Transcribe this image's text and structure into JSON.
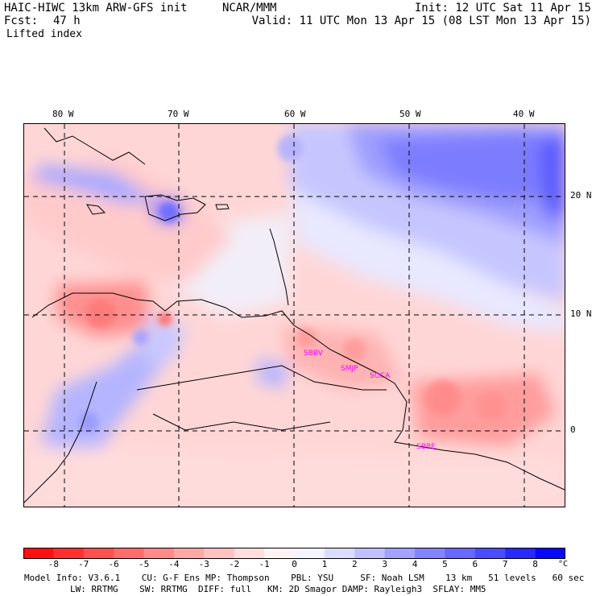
{
  "header": {
    "title": "HAIC-HIWC 13km ARW-GFS init",
    "org": "NCAR/MMM",
    "init": "Init: 12 UTC Sat 11 Apr 15",
    "fcst_label": "Fcst:",
    "fcst_value": "47 h",
    "valid": "Valid: 11 UTC Mon 13 Apr 15 (08 LST Mon 13 Apr 15)",
    "field": "Lifted index"
  },
  "map": {
    "lon_labels": [
      "80 W",
      "70 W",
      "60 W",
      "50 W",
      "40 W"
    ],
    "lat_labels": [
      "20 N",
      "10 N",
      "0"
    ],
    "stations": [
      "SBBV",
      "SMJP",
      "SOCA",
      "SBBE"
    ]
  },
  "legend": {
    "ticks": [
      "-8",
      "-7",
      "-6",
      "-5",
      "-4",
      "-3",
      "-2",
      "-1",
      "0",
      "1",
      "2",
      "3",
      "4",
      "5",
      "6",
      "7",
      "8"
    ],
    "unit": "°C",
    "colors": [
      "#ff1010",
      "#ff3030",
      "#ff5050",
      "#ff6c6c",
      "#ff8a8a",
      "#ffa8a8",
      "#ffc2c2",
      "#ffdede",
      "#fff4f4",
      "#f4f4ff",
      "#dcdcff",
      "#c0c0ff",
      "#a2a2ff",
      "#8484ff",
      "#6868ff",
      "#4c4cff",
      "#2a2aff",
      "#0808ff"
    ]
  },
  "model_info": {
    "line1": "Model Info: V3.6.1    CU: G-F Ens MP: Thompson    PBL: YSU     SF: Noah LSM    13 km   51 levels   60 sec",
    "line2": "LW: RRTMG    SW: RRTMG  DIFF: full   KM: 2D Smagor DAMP: Rayleigh3  SFLAY: MM5"
  }
}
